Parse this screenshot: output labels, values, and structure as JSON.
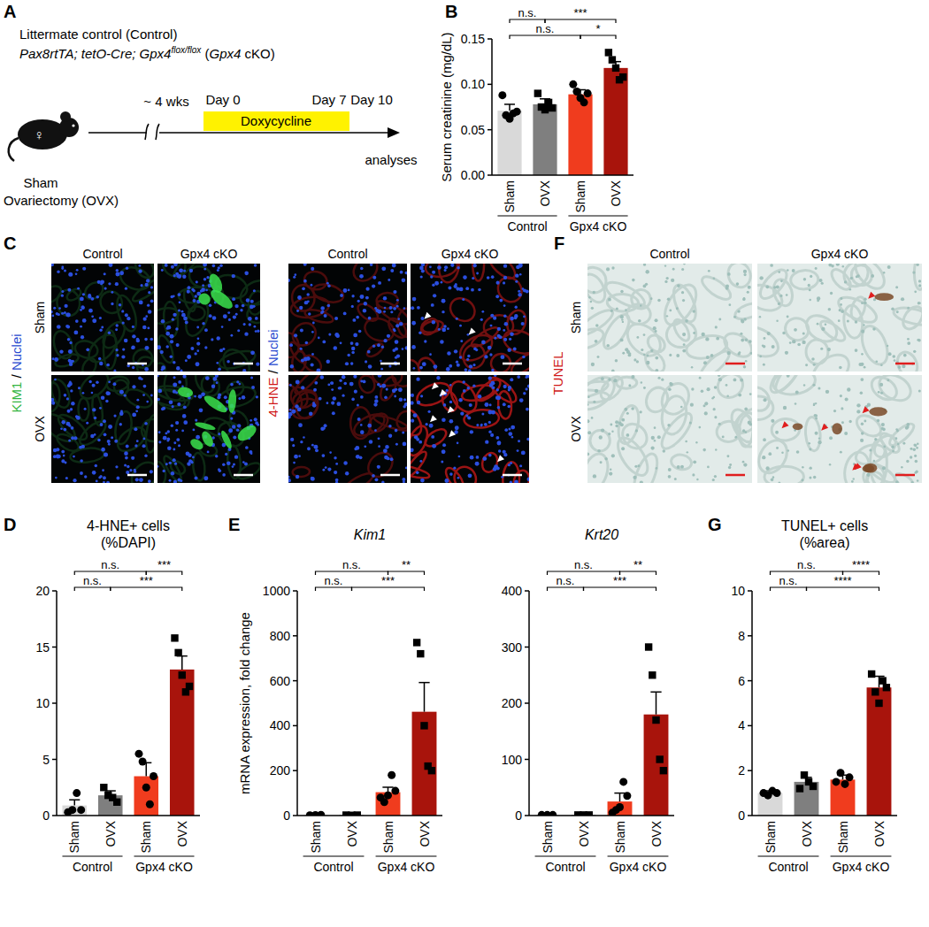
{
  "schematic": {
    "panel": "A",
    "control": "Littermate control (Control)",
    "genotype": [
      "Pax8rtTA; tetO-Cre; Gpx4",
      "flox/flox",
      " (",
      "Gpx4",
      " cKO)"
    ],
    "sex": "♀",
    "interval": "~ 4 wks",
    "days": [
      "Day 0",
      "Day 7",
      "Day 10"
    ],
    "treatment": "Doxycycline",
    "endpoint": "analyses",
    "surgery": [
      "Sham",
      "Ovariectomy (OVX)"
    ]
  },
  "chart_data": [
    {
      "type": "bar",
      "panel": "B",
      "ylabel": "Serum creatinine (mg/dL)",
      "categories": [
        "Sham",
        "OVX",
        "Sham",
        "OVX"
      ],
      "groups": [
        "Control",
        "Gpx4 cKO"
      ],
      "values": [
        0.071,
        0.078,
        0.089,
        0.118
      ],
      "errors": [
        0.007,
        0.006,
        0.005,
        0.007
      ],
      "points": [
        [
          0.088,
          0.066,
          0.062,
          0.068,
          0.07
        ],
        [
          0.09,
          0.075,
          0.072,
          0.08,
          0.074
        ],
        [
          0.1,
          0.092,
          0.085,
          0.08,
          0.09
        ],
        [
          0.135,
          0.127,
          0.118,
          0.105,
          0.108
        ]
      ],
      "colors": [
        "#d9d9d9",
        "#7f7f7f",
        "#f03c1e",
        "#a8140c"
      ],
      "ylim": [
        0,
        0.15
      ],
      "yticks": [
        {
          "value": 0,
          "label": "0.00"
        },
        0.05,
        {
          "value": 0.1,
          "label": "0.10"
        },
        0.15
      ],
      "significance": [
        {
          "from": 0,
          "to": 1,
          "label": "n.s.",
          "row": 0
        },
        {
          "from": 1,
          "to": 3,
          "label": "***",
          "row": 0
        },
        {
          "from": 0,
          "to": 2,
          "label": "n.s.",
          "row": 1
        },
        {
          "from": 2,
          "to": 3,
          "label": "*",
          "row": 1
        }
      ]
    },
    {
      "type": "bar",
      "panel": "D",
      "title": "4-HNE+ cells",
      "subtitle": "(%DAPI)",
      "categories": [
        "Sham",
        "OVX",
        "Sham",
        "OVX"
      ],
      "groups": [
        "Control",
        "Gpx4 cKO"
      ],
      "values": [
        0.9,
        1.8,
        3.5,
        13.0
      ],
      "errors": [
        0.5,
        0.4,
        1.2,
        1.2
      ],
      "points": [
        [
          0.3,
          0.5,
          2.0,
          0.5
        ],
        [
          2.5,
          1.8,
          1.6,
          1.2
        ],
        [
          5.5,
          4.8,
          2.5,
          1.0,
          3.5
        ],
        [
          15.8,
          14.5,
          12.5,
          11.0,
          11.5
        ]
      ],
      "colors": [
        "#d9d9d9",
        "#7f7f7f",
        "#f03c1e",
        "#a8140c"
      ],
      "ylim": [
        0,
        20
      ],
      "yticks": [
        0,
        5,
        10,
        15,
        20
      ],
      "significance": [
        {
          "from": 0,
          "to": 2,
          "label": "n.s.",
          "row": 0
        },
        {
          "from": 2,
          "to": 3,
          "label": "***",
          "row": 0
        },
        {
          "from": 0,
          "to": 1,
          "label": "n.s.",
          "row": 1
        },
        {
          "from": 1,
          "to": 3,
          "label": "***",
          "row": 1
        }
      ]
    },
    {
      "type": "bar",
      "panel": "E",
      "title": "Kim1",
      "ylabel": "mRNA expression, fold change",
      "categories": [
        "Sham",
        "OVX",
        "Sham",
        "OVX"
      ],
      "groups": [
        "Control",
        "Gpx4 cKO"
      ],
      "values": [
        2,
        2,
        104,
        462
      ],
      "errors": [
        1,
        1,
        22,
        130
      ],
      "points": [
        [
          1,
          2,
          3
        ],
        [
          2,
          1,
          2
        ],
        [
          80,
          60,
          90,
          180,
          110
        ],
        [
          770,
          720,
          400,
          220,
          200
        ]
      ],
      "colors": [
        "#d9d9d9",
        "#7f7f7f",
        "#f03c1e",
        "#a8140c"
      ],
      "ylim": [
        0,
        1000
      ],
      "yticks": [
        0,
        200,
        400,
        600,
        800,
        1000
      ],
      "significance": [
        {
          "from": 0,
          "to": 2,
          "label": "n.s.",
          "row": 0
        },
        {
          "from": 2,
          "to": 3,
          "label": "**",
          "row": 0
        },
        {
          "from": 0,
          "to": 1,
          "label": "n.s.",
          "row": 1
        },
        {
          "from": 1,
          "to": 3,
          "label": "***",
          "row": 1
        }
      ]
    },
    {
      "type": "bar",
      "title": "Krt20",
      "categories": [
        "Sham",
        "OVX",
        "Sham",
        "OVX"
      ],
      "groups": [
        "Control",
        "Gpx4 cKO"
      ],
      "values": [
        1,
        1,
        25,
        180
      ],
      "errors": [
        0.5,
        0.5,
        15,
        40
      ],
      "points": [
        [
          1,
          1,
          1
        ],
        [
          1,
          1,
          1
        ],
        [
          5,
          10,
          15,
          60,
          35
        ],
        [
          300,
          250,
          170,
          100,
          80
        ]
      ],
      "colors": [
        "#d9d9d9",
        "#7f7f7f",
        "#f03c1e",
        "#a8140c"
      ],
      "ylim": [
        0,
        400
      ],
      "yticks": [
        0,
        100,
        200,
        300,
        400
      ],
      "significance": [
        {
          "from": 0,
          "to": 2,
          "label": "n.s.",
          "row": 0
        },
        {
          "from": 2,
          "to": 3,
          "label": "**",
          "row": 0
        },
        {
          "from": 0,
          "to": 1,
          "label": "n.s.",
          "row": 1
        },
        {
          "from": 1,
          "to": 3,
          "label": "***",
          "row": 1
        }
      ]
    },
    {
      "type": "bar",
      "panel": "G",
      "title": "TUNEL+ cells",
      "subtitle": "(%area)",
      "categories": [
        "Sham",
        "OVX",
        "Sham",
        "OVX"
      ],
      "groups": [
        "Control",
        "Gpx4 cKO"
      ],
      "values": [
        1.0,
        1.5,
        1.6,
        5.7
      ],
      "errors": [
        0.1,
        0.2,
        0.2,
        0.5
      ],
      "points": [
        [
          1.0,
          0.9,
          1.1,
          1.0
        ],
        [
          1.2,
          1.8,
          1.5,
          1.3
        ],
        [
          1.5,
          1.9,
          1.4,
          1.7
        ],
        [
          6.3,
          5.5,
          5.0,
          6.0,
          5.7
        ]
      ],
      "colors": [
        "#d9d9d9",
        "#7f7f7f",
        "#f03c1e",
        "#a8140c"
      ],
      "ylim": [
        0,
        10
      ],
      "yticks": [
        0,
        2,
        4,
        6,
        8,
        10
      ],
      "significance": [
        {
          "from": 0,
          "to": 2,
          "label": "n.s.",
          "row": 0
        },
        {
          "from": 2,
          "to": 3,
          "label": "****",
          "row": 0
        },
        {
          "from": 0,
          "to": 1,
          "label": "n.s.",
          "row": 1
        },
        {
          "from": 1,
          "to": 3,
          "label": "****",
          "row": 1
        }
      ]
    }
  ],
  "images": [
    {
      "panel": "C",
      "label_parts": [
        "KIM1",
        " / ",
        "Nuclei"
      ],
      "columns": [
        "Control",
        "Gpx4 cKO"
      ],
      "rows": [
        "Sham",
        "OVX"
      ]
    },
    {
      "label_parts": [
        "4-HNE",
        " / ",
        "Nuclei"
      ],
      "columns": [
        "Control",
        "Gpx4 cKO"
      ]
    },
    {
      "panel": "F",
      "label_parts": [
        "TUNEL"
      ],
      "columns": [
        "Control",
        "Gpx4 cKO"
      ],
      "rows": [
        "Sham",
        "OVX"
      ]
    }
  ]
}
